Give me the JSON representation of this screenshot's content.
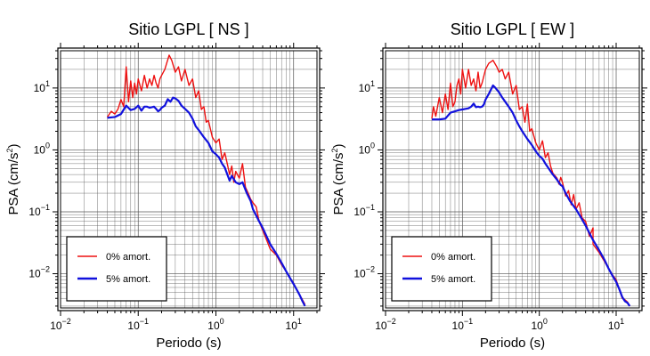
{
  "colors": {
    "undamped": "#ee1111",
    "damped": "#1111dd",
    "grid": "#555555",
    "frame": "#000000"
  },
  "chart_data": [
    {
      "type": "line",
      "title": "Sitio LGPL [ NS ]",
      "xlabel": "Periodo (s)",
      "ylabel_main": "PSA (cm/s",
      "ylabel_sup": "2",
      "ylabel_end": ")",
      "xscale": "log",
      "yscale": "log",
      "xlim": [
        0.01,
        20
      ],
      "ylim": [
        0.0028,
        40
      ],
      "grid": true,
      "legend_position": "bottom-left",
      "xticks": [
        {
          "base": "10",
          "exp": "−2",
          "value": 0.01
        },
        {
          "base": "10",
          "exp": "−1",
          "value": 0.1
        },
        {
          "base": "10",
          "exp": "0",
          "value": 1
        },
        {
          "base": "10",
          "exp": "1",
          "value": 10
        }
      ],
      "yticks": [
        {
          "base": "10",
          "exp": "−2",
          "value": 0.01
        },
        {
          "base": "10",
          "exp": "−1",
          "value": 0.1
        },
        {
          "base": "10",
          "exp": "0",
          "value": 1
        },
        {
          "base": "10",
          "exp": "1",
          "value": 10
        }
      ],
      "series": [
        {
          "name": "0% amort.",
          "color_key": "undamped",
          "points": [
            [
              0.04,
              3.4
            ],
            [
              0.045,
              4.2
            ],
            [
              0.05,
              3.8
            ],
            [
              0.055,
              4.6
            ],
            [
              0.06,
              6.5
            ],
            [
              0.065,
              5.0
            ],
            [
              0.07,
              22
            ],
            [
              0.075,
              6.0
            ],
            [
              0.08,
              13
            ],
            [
              0.085,
              7.0
            ],
            [
              0.09,
              12
            ],
            [
              0.095,
              8.0
            ],
            [
              0.1,
              14
            ],
            [
              0.11,
              9.0
            ],
            [
              0.12,
              16
            ],
            [
              0.13,
              10
            ],
            [
              0.14,
              14
            ],
            [
              0.15,
              11
            ],
            [
              0.16,
              16
            ],
            [
              0.17,
              12
            ],
            [
              0.18,
              10
            ],
            [
              0.19,
              14
            ],
            [
              0.2,
              16
            ],
            [
              0.22,
              20
            ],
            [
              0.25,
              34
            ],
            [
              0.27,
              28
            ],
            [
              0.3,
              18
            ],
            [
              0.33,
              22
            ],
            [
              0.36,
              13
            ],
            [
              0.4,
              20
            ],
            [
              0.45,
              11
            ],
            [
              0.5,
              14
            ],
            [
              0.55,
              7.0
            ],
            [
              0.6,
              9.0
            ],
            [
              0.65,
              4.5
            ],
            [
              0.7,
              5.0
            ],
            [
              0.75,
              2.8
            ],
            [
              0.8,
              3.0
            ],
            [
              0.9,
              1.6
            ],
            [
              1.0,
              1.3
            ],
            [
              1.1,
              1.5
            ],
            [
              1.2,
              0.7
            ],
            [
              1.3,
              0.9
            ],
            [
              1.4,
              0.6
            ],
            [
              1.5,
              0.4
            ],
            [
              1.6,
              0.55
            ],
            [
              1.7,
              0.3
            ],
            [
              1.8,
              0.45
            ],
            [
              2.0,
              0.35
            ],
            [
              2.2,
              0.6
            ],
            [
              2.4,
              0.25
            ],
            [
              2.6,
              0.2
            ],
            [
              2.8,
              0.16
            ],
            [
              3.0,
              0.14
            ],
            [
              3.3,
              0.12
            ],
            [
              3.6,
              0.07
            ],
            [
              4.0,
              0.05
            ],
            [
              4.5,
              0.035
            ],
            [
              5.0,
              0.025
            ],
            [
              6.0,
              0.02
            ],
            [
              7.0,
              0.014
            ],
            [
              8.0,
              0.011
            ],
            [
              9.0,
              0.0085
            ],
            [
              10.0,
              0.007
            ],
            [
              11.0,
              0.0055
            ],
            [
              12.0,
              0.0045
            ],
            [
              13.0,
              0.0038
            ],
            [
              14.0,
              0.0032
            ]
          ]
        },
        {
          "name": "5% amort.",
          "color_key": "damped",
          "points": [
            [
              0.04,
              3.3
            ],
            [
              0.05,
              3.4
            ],
            [
              0.06,
              3.8
            ],
            [
              0.07,
              5.2
            ],
            [
              0.08,
              4.4
            ],
            [
              0.09,
              4.6
            ],
            [
              0.1,
              5.2
            ],
            [
              0.11,
              4.3
            ],
            [
              0.12,
              5.0
            ],
            [
              0.13,
              5.0
            ],
            [
              0.14,
              4.8
            ],
            [
              0.15,
              4.9
            ],
            [
              0.16,
              5.0
            ],
            [
              0.17,
              4.6
            ],
            [
              0.18,
              4.2
            ],
            [
              0.19,
              4.4
            ],
            [
              0.2,
              4.8
            ],
            [
              0.22,
              5.2
            ],
            [
              0.24,
              6.6
            ],
            [
              0.26,
              6.0
            ],
            [
              0.28,
              7.0
            ],
            [
              0.3,
              6.8
            ],
            [
              0.33,
              6.2
            ],
            [
              0.36,
              5.2
            ],
            [
              0.4,
              4.6
            ],
            [
              0.45,
              4.0
            ],
            [
              0.5,
              3.2
            ],
            [
              0.55,
              2.4
            ],
            [
              0.6,
              2.1
            ],
            [
              0.7,
              1.6
            ],
            [
              0.8,
              1.3
            ],
            [
              0.9,
              0.95
            ],
            [
              1.0,
              0.85
            ],
            [
              1.1,
              0.75
            ],
            [
              1.2,
              0.6
            ],
            [
              1.3,
              0.52
            ],
            [
              1.5,
              0.32
            ],
            [
              1.6,
              0.38
            ],
            [
              1.8,
              0.3
            ],
            [
              2.0,
              0.28
            ],
            [
              2.2,
              0.3
            ],
            [
              2.5,
              0.2
            ],
            [
              2.8,
              0.15
            ],
            [
              3.0,
              0.11
            ],
            [
              3.5,
              0.075
            ],
            [
              4.0,
              0.055
            ],
            [
              4.5,
              0.04
            ],
            [
              5.0,
              0.03
            ],
            [
              6.0,
              0.021
            ],
            [
              7.0,
              0.015
            ],
            [
              8.0,
              0.011
            ],
            [
              9.0,
              0.0085
            ],
            [
              10.0,
              0.0068
            ],
            [
              11.0,
              0.0055
            ],
            [
              12.0,
              0.0045
            ],
            [
              13.0,
              0.0036
            ],
            [
              14.0,
              0.003
            ]
          ]
        }
      ]
    },
    {
      "type": "line",
      "title": "Sitio LGPL [ EW ]",
      "xlabel": "Periodo (s)",
      "ylabel_main": "PSA (cm/s",
      "ylabel_sup": "2",
      "ylabel_end": ")",
      "xscale": "log",
      "yscale": "log",
      "xlim": [
        0.01,
        20
      ],
      "ylim": [
        0.0028,
        40
      ],
      "grid": true,
      "legend_position": "bottom-left",
      "xticks": [
        {
          "base": "10",
          "exp": "−2",
          "value": 0.01
        },
        {
          "base": "10",
          "exp": "−1",
          "value": 0.1
        },
        {
          "base": "10",
          "exp": "0",
          "value": 1
        },
        {
          "base": "10",
          "exp": "1",
          "value": 10
        }
      ],
      "yticks": [
        {
          "base": "10",
          "exp": "−2",
          "value": 0.01
        },
        {
          "base": "10",
          "exp": "−1",
          "value": 0.1
        },
        {
          "base": "10",
          "exp": "0",
          "value": 1
        },
        {
          "base": "10",
          "exp": "1",
          "value": 10
        }
      ],
      "series": [
        {
          "name": "0% amort.",
          "color_key": "undamped",
          "points": [
            [
              0.04,
              3.2
            ],
            [
              0.042,
              5.0
            ],
            [
              0.045,
              3.5
            ],
            [
              0.05,
              7.0
            ],
            [
              0.055,
              4.0
            ],
            [
              0.06,
              8.0
            ],
            [
              0.065,
              4.5
            ],
            [
              0.07,
              12
            ],
            [
              0.075,
              5.0
            ],
            [
              0.08,
              6.0
            ],
            [
              0.085,
              11
            ],
            [
              0.09,
              14
            ],
            [
              0.095,
              8.0
            ],
            [
              0.1,
              20
            ],
            [
              0.11,
              10
            ],
            [
              0.12,
              20
            ],
            [
              0.13,
              11
            ],
            [
              0.14,
              14
            ],
            [
              0.15,
              9.0
            ],
            [
              0.16,
              18
            ],
            [
              0.17,
              10
            ],
            [
              0.18,
              12
            ],
            [
              0.2,
              20
            ],
            [
              0.22,
              25
            ],
            [
              0.25,
              28
            ],
            [
              0.28,
              22
            ],
            [
              0.3,
              18
            ],
            [
              0.33,
              20
            ],
            [
              0.36,
              14
            ],
            [
              0.4,
              18
            ],
            [
              0.45,
              8.0
            ],
            [
              0.5,
              11
            ],
            [
              0.55,
              4.5
            ],
            [
              0.6,
              5.0
            ],
            [
              0.65,
              2.8
            ],
            [
              0.7,
              5.5
            ],
            [
              0.75,
              2.0
            ],
            [
              0.8,
              2.2
            ],
            [
              0.9,
              1.3
            ],
            [
              1.0,
              1.0
            ],
            [
              1.1,
              1.4
            ],
            [
              1.2,
              0.75
            ],
            [
              1.3,
              0.9
            ],
            [
              1.4,
              0.55
            ],
            [
              1.5,
              0.42
            ],
            [
              1.7,
              0.35
            ],
            [
              1.8,
              0.28
            ],
            [
              1.9,
              0.36
            ],
            [
              2.0,
              0.3
            ],
            [
              2.2,
              0.18
            ],
            [
              2.4,
              0.22
            ],
            [
              2.6,
              0.13
            ],
            [
              2.8,
              0.19
            ],
            [
              3.0,
              0.11
            ],
            [
              3.3,
              0.14
            ],
            [
              3.6,
              0.08
            ],
            [
              4.0,
              0.07
            ],
            [
              4.5,
              0.04
            ],
            [
              5.0,
              0.055
            ],
            [
              5.0,
              0.03
            ],
            [
              6.0,
              0.022
            ],
            [
              7.0,
              0.016
            ],
            [
              8.0,
              0.012
            ],
            [
              9.0,
              0.0095
            ],
            [
              10.0,
              0.008
            ],
            [
              11.0,
              0.0055
            ],
            [
              12.0,
              0.004
            ],
            [
              13.0,
              0.0038
            ],
            [
              14.0,
              0.0035
            ],
            [
              15.0,
              0.003
            ]
          ]
        },
        {
          "name": "5% amort.",
          "color_key": "damped",
          "points": [
            [
              0.04,
              3.1
            ],
            [
              0.05,
              3.1
            ],
            [
              0.06,
              3.2
            ],
            [
              0.07,
              4.0
            ],
            [
              0.08,
              4.2
            ],
            [
              0.09,
              4.4
            ],
            [
              0.1,
              4.5
            ],
            [
              0.11,
              4.6
            ],
            [
              0.12,
              4.7
            ],
            [
              0.13,
              5.0
            ],
            [
              0.14,
              5.6
            ],
            [
              0.15,
              4.9
            ],
            [
              0.16,
              5.0
            ],
            [
              0.17,
              4.9
            ],
            [
              0.18,
              5.0
            ],
            [
              0.19,
              5.4
            ],
            [
              0.2,
              6.5
            ],
            [
              0.22,
              8.0
            ],
            [
              0.25,
              11
            ],
            [
              0.27,
              10
            ],
            [
              0.3,
              8.5
            ],
            [
              0.33,
              7.0
            ],
            [
              0.36,
              6.0
            ],
            [
              0.4,
              5.0
            ],
            [
              0.45,
              4.0
            ],
            [
              0.5,
              3.0
            ],
            [
              0.55,
              2.4
            ],
            [
              0.6,
              2.0
            ],
            [
              0.7,
              1.5
            ],
            [
              0.8,
              1.2
            ],
            [
              0.9,
              0.95
            ],
            [
              1.0,
              0.8
            ],
            [
              1.1,
              0.72
            ],
            [
              1.2,
              0.6
            ],
            [
              1.3,
              0.52
            ],
            [
              1.5,
              0.4
            ],
            [
              1.7,
              0.33
            ],
            [
              1.9,
              0.27
            ],
            [
              2.0,
              0.26
            ],
            [
              2.2,
              0.2
            ],
            [
              2.5,
              0.15
            ],
            [
              3.0,
              0.11
            ],
            [
              3.5,
              0.08
            ],
            [
              4.0,
              0.06
            ],
            [
              4.5,
              0.045
            ],
            [
              5.0,
              0.035
            ],
            [
              6.0,
              0.024
            ],
            [
              7.0,
              0.017
            ],
            [
              8.0,
              0.012
            ],
            [
              9.0,
              0.0092
            ],
            [
              10.0,
              0.0074
            ],
            [
              11.0,
              0.0056
            ],
            [
              12.0,
              0.0042
            ],
            [
              13.0,
              0.0036
            ],
            [
              14.0,
              0.0034
            ],
            [
              15.0,
              0.003
            ]
          ]
        }
      ]
    }
  ]
}
